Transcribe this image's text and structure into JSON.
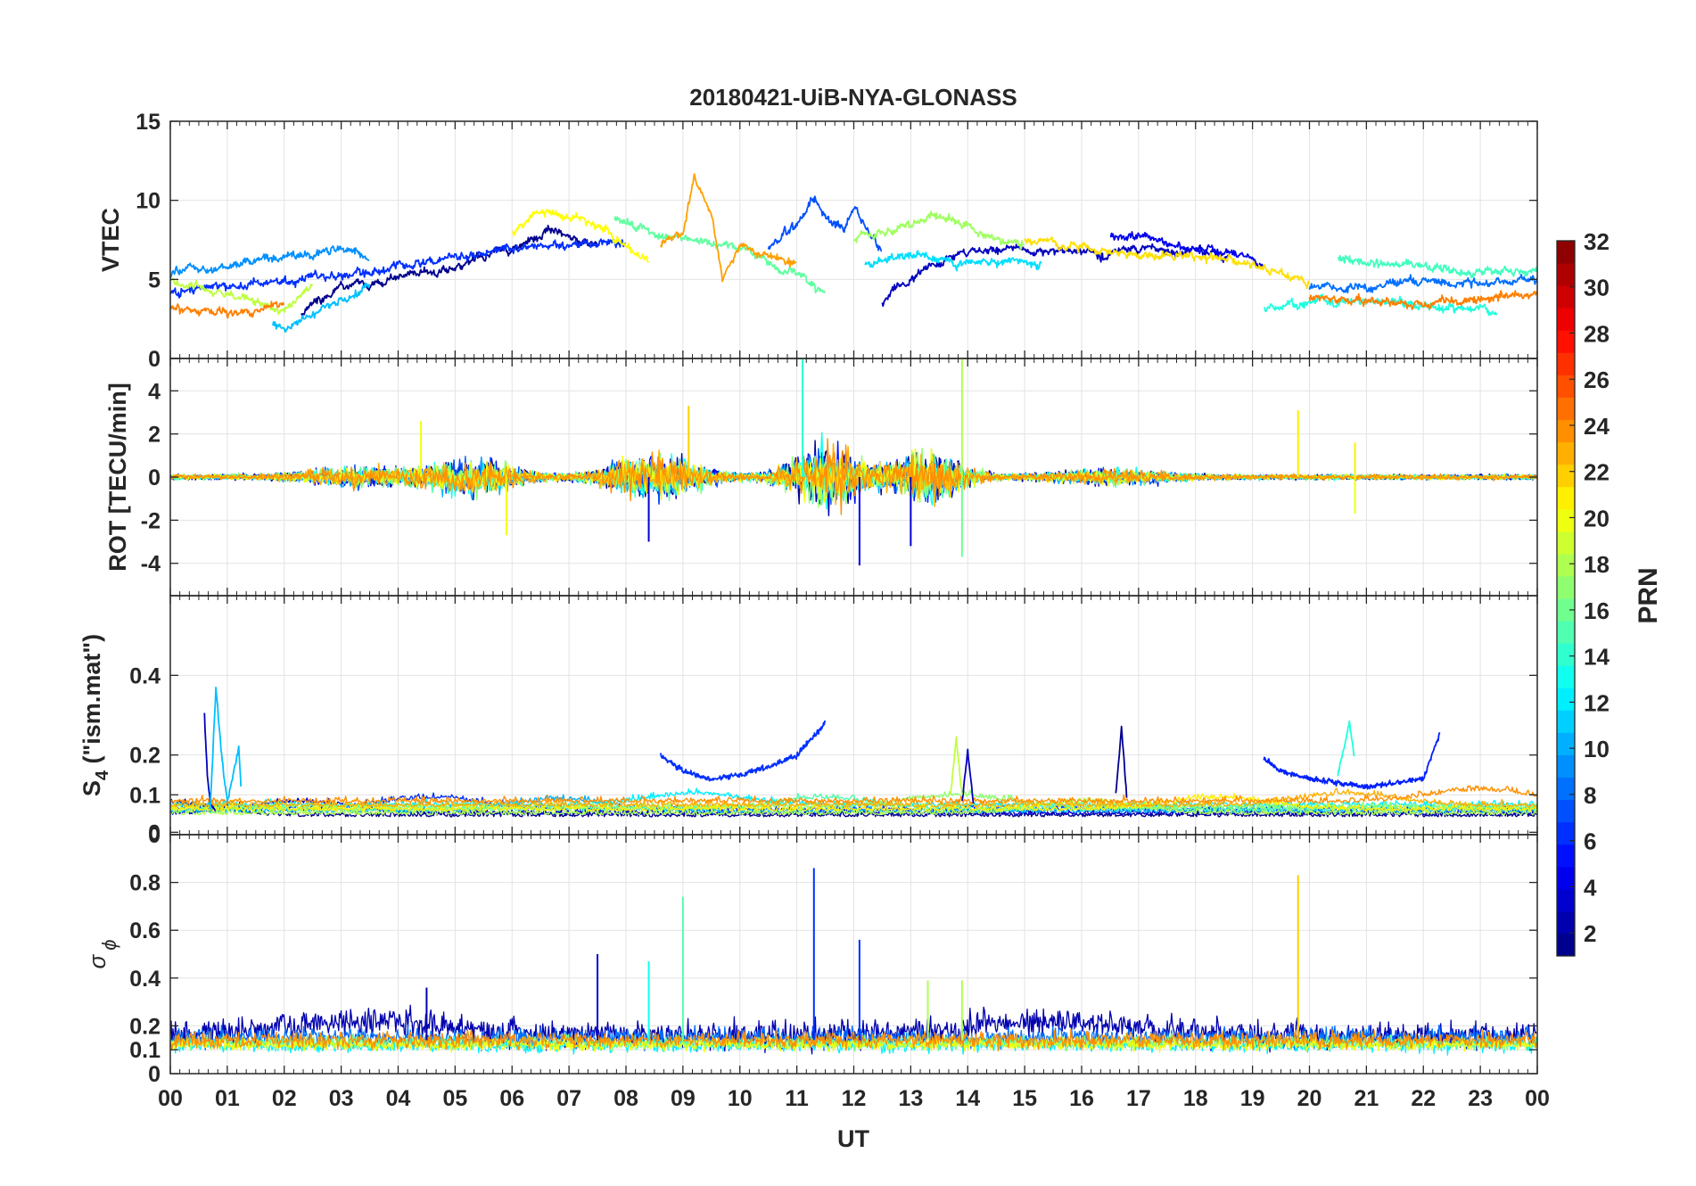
{
  "title": "20180421-UiB-NYA-GLONASS",
  "x_axis": {
    "label": "UT",
    "ticks": [
      "00",
      "01",
      "02",
      "03",
      "04",
      "05",
      "06",
      "07",
      "08",
      "09",
      "10",
      "11",
      "12",
      "13",
      "14",
      "15",
      "16",
      "17",
      "18",
      "19",
      "20",
      "21",
      "22",
      "23",
      "00"
    ]
  },
  "colorbar": {
    "label": "PRN",
    "range": [
      1,
      32
    ],
    "ticks": [
      "2",
      "4",
      "6",
      "8",
      "10",
      "12",
      "14",
      "16",
      "18",
      "20",
      "22",
      "24",
      "26",
      "28",
      "30",
      "32"
    ],
    "colormap": "jet",
    "levels": 32
  },
  "panels": [
    {
      "ylabel": "VTEC",
      "ticks": [
        "0",
        "5",
        "10",
        "15"
      ]
    },
    {
      "ylabel": "ROT [TECU/min]",
      "ticks": [
        "-4",
        "-2",
        "0",
        "2",
        "4"
      ]
    },
    {
      "ylabel_main": "S",
      "ylabel_sub": "4",
      "ylabel_rest": " (\"ism.mat\")",
      "ticks": [
        "0",
        "0",
        "0.1",
        "0.2",
        "0.4"
      ]
    },
    {
      "ylabel_main": "σ",
      "ylabel_sub": "ϕ",
      "ticks": [
        "0",
        "0.1",
        "0.2",
        "0.4",
        "0.6",
        "0.8"
      ]
    }
  ],
  "chart_data": [
    {
      "type": "line",
      "title": "20180421-UiB-NYA-GLONASS",
      "ylabel": "VTEC",
      "xlabel": "",
      "xlim": [
        0,
        24
      ],
      "ylim": [
        0,
        15
      ],
      "grid": true,
      "series": [
        {
          "prn": 1,
          "color": "#00008f",
          "x": [
            2.3,
            3,
            4,
            5,
            6,
            6.7,
            7.5
          ],
          "y": [
            3.0,
            4.6,
            5.0,
            5.8,
            7.0,
            8.2,
            7.2
          ]
        },
        {
          "prn": 2,
          "color": "#0000bf",
          "x": [
            12.5,
            13,
            14,
            15,
            16,
            17,
            18,
            18.6
          ],
          "y": [
            3.6,
            5.2,
            6.8,
            7.0,
            6.6,
            7.0,
            6.8,
            6.3
          ]
        },
        {
          "prn": 3,
          "color": "#0000ef",
          "x": [
            16.5,
            17,
            17.5,
            18.5,
            19.2
          ],
          "y": [
            7.8,
            7.8,
            7.2,
            6.8,
            6.2
          ]
        },
        {
          "prn": 5,
          "color": "#002fff",
          "x": [
            0,
            1,
            2,
            3,
            4,
            5,
            6,
            7,
            8
          ],
          "y": [
            4.2,
            4.5,
            4.8,
            5.3,
            5.8,
            6.4,
            7.0,
            7.2,
            7.4
          ]
        },
        {
          "prn": 6,
          "color": "#004fff",
          "x": [
            10.5,
            11,
            11.3,
            11.8,
            12,
            12.5
          ],
          "y": [
            7.0,
            8.5,
            10.0,
            8.0,
            9.5,
            7.0
          ]
        },
        {
          "prn": 7,
          "color": "#006fff",
          "x": [
            20,
            21,
            22,
            23,
            24
          ],
          "y": [
            4.5,
            4.6,
            4.9,
            4.8,
            5.0
          ]
        },
        {
          "prn": 8,
          "color": "#008fff",
          "x": [
            0,
            1,
            2,
            3,
            3.5
          ],
          "y": [
            5.4,
            5.8,
            6.4,
            7.0,
            6.5
          ]
        },
        {
          "prn": 10,
          "color": "#00bfff",
          "x": [
            1.8,
            2,
            2.5,
            3,
            3.5
          ],
          "y": [
            2.0,
            1.8,
            2.8,
            3.7,
            4.5
          ]
        },
        {
          "prn": 11,
          "color": "#00dfff",
          "x": [
            12.2,
            13,
            14,
            15,
            15.3
          ],
          "y": [
            6.0,
            6.5,
            6.0,
            6.2,
            6.0
          ]
        },
        {
          "prn": 13,
          "color": "#20ffdf",
          "x": [
            19.2,
            20,
            21,
            22,
            23.3
          ],
          "y": [
            3.1,
            3.6,
            3.7,
            3.3,
            2.9
          ]
        },
        {
          "prn": 14,
          "color": "#40ffbf",
          "x": [
            20.5,
            21.5,
            22.5,
            23.5,
            24
          ],
          "y": [
            6.3,
            6.0,
            5.6,
            5.4,
            5.7
          ]
        },
        {
          "prn": 15,
          "color": "#60ff9f",
          "x": [
            7.8,
            8.5,
            9.5,
            10,
            11,
            11.5
          ],
          "y": [
            8.8,
            8.0,
            7.2,
            7.0,
            5.2,
            4.2
          ]
        },
        {
          "prn": 17,
          "color": "#9fff60",
          "x": [
            12,
            13,
            13.5,
            14,
            14.5,
            15
          ],
          "y": [
            7.5,
            8.5,
            9.0,
            8.5,
            7.5,
            7.0
          ]
        },
        {
          "prn": 18,
          "color": "#bfff40",
          "x": [
            0,
            1,
            2,
            2.5
          ],
          "y": [
            5.0,
            4.0,
            3.0,
            4.6
          ]
        },
        {
          "prn": 20,
          "color": "#ffff00",
          "x": [
            6,
            6.5,
            7,
            7.5,
            8,
            8.4
          ],
          "y": [
            8.0,
            9.5,
            9.0,
            8.5,
            7.0,
            6.0
          ]
        },
        {
          "prn": 21,
          "color": "#ffdf00",
          "x": [
            15,
            16,
            17,
            18,
            19,
            19.8,
            20
          ],
          "y": [
            7.5,
            7.0,
            6.5,
            6.5,
            6.0,
            5.0,
            4.5
          ]
        },
        {
          "prn": 23,
          "color": "#ff9f00",
          "x": [
            8.6,
            9,
            9.2,
            9.5,
            9.7,
            10,
            11
          ],
          "y": [
            7.0,
            8.0,
            11.5,
            9.0,
            5.0,
            7.0,
            6.0
          ]
        },
        {
          "prn": 24,
          "color": "#ff7f00",
          "x": [
            0,
            0.5,
            1,
            1.5,
            2
          ],
          "y": [
            3.2,
            3.0,
            2.9,
            3.0,
            3.5
          ]
        },
        {
          "prn": 24,
          "color": "#ff7f00",
          "x": [
            20,
            21,
            22,
            23,
            24
          ],
          "y": [
            4.0,
            3.6,
            3.5,
            3.7,
            4.2
          ]
        }
      ]
    },
    {
      "type": "line",
      "ylabel": "ROT [TECU/min]",
      "xlabel": "",
      "xlim": [
        0,
        24
      ],
      "ylim": [
        -5.5,
        5.5
      ],
      "grid": true,
      "peaks": [
        {
          "x": 11.1,
          "y": 5.5
        },
        {
          "x": 13.9,
          "y": 5.5
        },
        {
          "x": 12.1,
          "y": -4.1
        },
        {
          "x": 13.0,
          "y": -3.2
        },
        {
          "x": 13.9,
          "y": -3.7
        },
        {
          "x": 9.1,
          "y": 3.3
        },
        {
          "x": 8.4,
          "y": -3.0
        },
        {
          "x": 19.8,
          "y": 3.1
        },
        {
          "x": 20.8,
          "y": 1.6
        },
        {
          "x": 20.8,
          "y": -1.7
        },
        {
          "x": 5.9,
          "y": -2.7
        },
        {
          "x": 4.4,
          "y": 2.6
        }
      ]
    },
    {
      "type": "line",
      "ylabel": "S4 (\"ism.mat\")",
      "xlabel": "",
      "xlim": [
        0,
        24
      ],
      "ylim": [
        0,
        0.6
      ],
      "grid": true,
      "series": [
        {
          "prn": 2,
          "color": "#0000bf",
          "x": [
            0.6,
            0.65,
            0.7,
            0.8
          ],
          "y": [
            0.3,
            0.15,
            0.08,
            0.06
          ]
        },
        {
          "prn": 10,
          "color": "#00bfff",
          "x": [
            0.7,
            0.8,
            0.9,
            1.0,
            1.2,
            1.25
          ],
          "y": [
            0.06,
            0.37,
            0.2,
            0.08,
            0.22,
            0.1
          ]
        },
        {
          "prn": 5,
          "color": "#002fff",
          "x": [
            8.6,
            9,
            9.5,
            10,
            10.5,
            11,
            11.5
          ],
          "y": [
            0.2,
            0.16,
            0.14,
            0.15,
            0.17,
            0.2,
            0.28
          ]
        },
        {
          "prn": 4,
          "color": "#001fff",
          "x": [
            19.2,
            19.5,
            20,
            21,
            22,
            22.3
          ],
          "y": [
            0.19,
            0.16,
            0.14,
            0.12,
            0.14,
            0.26
          ]
        },
        {
          "prn": 13,
          "color": "#20ffdf",
          "x": [
            20.5,
            20.7,
            20.8
          ],
          "y": [
            0.15,
            0.28,
            0.18
          ]
        },
        {
          "prn": 1,
          "color": "#00008f",
          "x": [
            16.6,
            16.7,
            16.8
          ],
          "y": [
            0.1,
            0.27,
            0.08
          ]
        },
        {
          "prn": 2,
          "color": "#0000bf",
          "x": [
            13.9,
            14.0,
            14.1
          ],
          "y": [
            0.08,
            0.21,
            0.08
          ]
        },
        {
          "prn": 18,
          "color": "#bfff40",
          "x": [
            13.7,
            13.8,
            13.9
          ],
          "y": [
            0.1,
            0.24,
            0.1
          ]
        }
      ]
    },
    {
      "type": "line",
      "ylabel": "σφ",
      "xlabel": "UT",
      "xlim": [
        0,
        24
      ],
      "ylim": [
        0,
        1.0
      ],
      "grid": true,
      "peaks": [
        {
          "x": 11.3,
          "y": 0.86
        },
        {
          "x": 19.8,
          "y": 0.83
        },
        {
          "x": 9.0,
          "y": 0.74
        },
        {
          "x": 12.1,
          "y": 0.56
        },
        {
          "x": 7.5,
          "y": 0.5
        },
        {
          "x": 8.4,
          "y": 0.47
        },
        {
          "x": 13.3,
          "y": 0.39
        },
        {
          "x": 13.9,
          "y": 0.39
        },
        {
          "x": 4.5,
          "y": 0.36
        }
      ]
    }
  ]
}
